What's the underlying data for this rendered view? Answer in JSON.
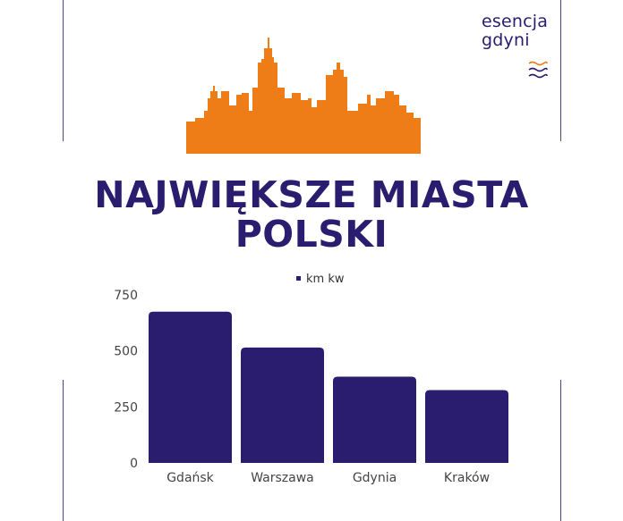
{
  "brand": {
    "line1": "esencja",
    "line2": "gdyni",
    "primary_color": "#2a1c6e",
    "accent_color": "#ee7d18",
    "icons": [
      "waves-icon",
      "city-skyline-icon"
    ]
  },
  "title": {
    "line1": "NAJWIĘKSZE MIASTA",
    "line2": "POLSKI"
  },
  "chart_data": {
    "type": "bar",
    "categories": [
      "Gdańsk",
      "Warszawa",
      "Gdynia",
      "Kraków"
    ],
    "series": [
      {
        "name": "km kw",
        "values": [
          675,
          515,
          385,
          325
        ]
      }
    ],
    "yticks": [
      "750",
      "500",
      "250",
      "0"
    ],
    "ylim": [
      0,
      750
    ],
    "grid": false,
    "legend": "top-center",
    "bar_color": "#2a1c6e"
  }
}
